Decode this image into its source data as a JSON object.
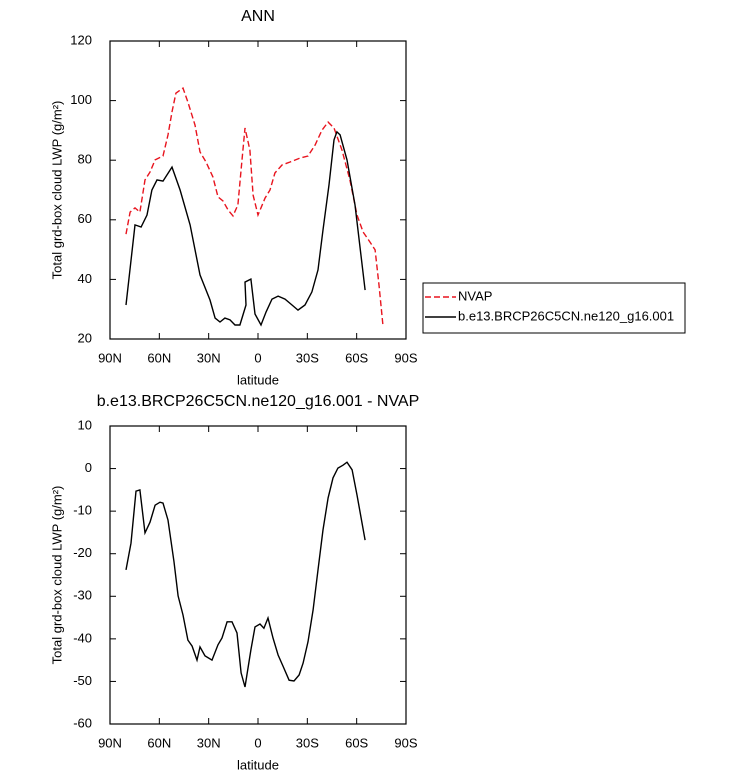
{
  "chart_data": [
    {
      "type": "line",
      "title": "ANN",
      "xlabel": "latitude",
      "ylabel": "Total grd-box cloud LWP (g/m²)",
      "xlim": [
        90,
        -90
      ],
      "xticks": [
        {
          "value": 90,
          "label": "90N"
        },
        {
          "value": 60,
          "label": "60N"
        },
        {
          "value": 30,
          "label": "30N"
        },
        0,
        {
          "value": -30,
          "label": "30S"
        },
        {
          "value": -60,
          "label": "60S"
        },
        {
          "value": -90,
          "label": "90S"
        }
      ],
      "ylim": [
        20,
        120
      ],
      "yticks": [
        20,
        40,
        60,
        80,
        100,
        120
      ],
      "legend": "right",
      "series": [
        {
          "name": "NVAP",
          "color": "#e8141e",
          "line_style": "dashed",
          "x": [
            80.3,
            77.8,
            74.8,
            71.8,
            68.7,
            65.7,
            62.6,
            57.8,
            54.7,
            52.3,
            49.9,
            45.6,
            42.6,
            38.3,
            35.3,
            31.6,
            27.4,
            24.3,
            21.3,
            18.2,
            15.2,
            12.2,
            9.7,
            7.9,
            4.9,
            3,
            0,
            -4.3,
            -7.3,
            -10.3,
            -14.6,
            -19.5,
            -25.5,
            -30.4,
            -34.7,
            -38.9,
            -42.6,
            -46.2,
            -51.1,
            -55.9,
            -60.2,
            -63.9,
            -68.1,
            -71.2,
            -73.6,
            -76
          ],
          "values": [
            55.2,
            62.6,
            64,
            62.6,
            73.4,
            76,
            80.1,
            81.4,
            88.5,
            96.2,
            102.5,
            104.2,
            99.5,
            91.8,
            82.8,
            79.4,
            74.4,
            67.7,
            66.3,
            63.3,
            61.3,
            65,
            80.1,
            90.8,
            83.4,
            68.3,
            61.6,
            67.3,
            70,
            75.7,
            78.4,
            79.4,
            80.7,
            81.4,
            85.1,
            90.1,
            92.8,
            90.8,
            83.4,
            73.4,
            61.6,
            55.9,
            52.5,
            49.9,
            38.1,
            24.4
          ]
        },
        {
          "name": "b.e13.BRCP26C5CN.ne120_g16.001",
          "color": "#000000",
          "line_style": "solid",
          "x": [
            80.3,
            74.8,
            71.1,
            67.5,
            64.5,
            61.4,
            57.8,
            52.3,
            47.4,
            41.3,
            35.3,
            29.2,
            26.1,
            23.1,
            20.1,
            17,
            14,
            11,
            7.3,
            7.9,
            4.3,
            1.8,
            -1.8,
            -4.9,
            -8.5,
            -12.2,
            -16.4,
            -20.7,
            -24.3,
            -28.6,
            -32.8,
            -36.5,
            -39.5,
            -43.2,
            -46.2,
            -48,
            -49.9,
            -54.1,
            -59,
            -65.1
          ],
          "values": [
            31.4,
            58.3,
            57.6,
            61.6,
            70,
            73.4,
            73,
            77.7,
            70,
            58.3,
            41.5,
            33.1,
            27,
            25.7,
            27,
            26.4,
            24.7,
            24.7,
            31.4,
            39.1,
            40.1,
            28.4,
            24.7,
            29.1,
            33.4,
            34.4,
            33.4,
            31.4,
            29.7,
            31.4,
            35.8,
            43.2,
            56.6,
            71.7,
            86.8,
            89.5,
            88.5,
            80.1,
            65,
            36.4
          ]
        }
      ]
    },
    {
      "type": "line",
      "title": "b.e13.BRCP26C5CN.ne120_g16.001 - NVAP",
      "xlabel": "latitude",
      "ylabel": "Total grd-box cloud LWP (g/m²)",
      "xlim": [
        90,
        -90
      ],
      "xticks": [
        {
          "value": 90,
          "label": "90N"
        },
        {
          "value": 60,
          "label": "60N"
        },
        {
          "value": 30,
          "label": "30N"
        },
        0,
        {
          "value": -30,
          "label": "30S"
        },
        {
          "value": -60,
          "label": "60S"
        },
        {
          "value": -90,
          "label": "90S"
        }
      ],
      "ylim": [
        -60,
        10
      ],
      "yticks": [
        -60,
        -50,
        -40,
        -30,
        -20,
        -10,
        0,
        10
      ],
      "series": [
        {
          "color": "#000000",
          "line_style": "solid",
          "x": [
            80.3,
            77.2,
            74.2,
            71.8,
            68.7,
            65.7,
            62.6,
            59.6,
            57.8,
            54.7,
            51.1,
            48.6,
            45.6,
            42.6,
            40.1,
            37.1,
            35.3,
            32.2,
            28,
            24.3,
            21.9,
            18.8,
            15.8,
            12.8,
            10.3,
            7.9,
            4.3,
            1.8,
            -1.2,
            -3.6,
            -6.1,
            -9.1,
            -12.2,
            -15.2,
            -18.9,
            -21.9,
            -25,
            -27.4,
            -30.4,
            -33.5,
            -36.5,
            -39.5,
            -42.6,
            -45.6,
            -48.6,
            -51.7,
            -54.1,
            -57.2,
            -60.2,
            -65.1
          ],
          "values": [
            -23.8,
            -17.5,
            -5.3,
            -5,
            -15.1,
            -12.6,
            -8.6,
            -7.9,
            -8.1,
            -12.1,
            -21.9,
            -29.9,
            -34.4,
            -40.3,
            -41.7,
            -45,
            -41.9,
            -44,
            -45,
            -41.4,
            -39.8,
            -36,
            -36,
            -38.6,
            -48,
            -51.3,
            -42.6,
            -37.2,
            -36.5,
            -37.5,
            -35.1,
            -39.8,
            -43.8,
            -46.4,
            -49.7,
            -49.9,
            -48.5,
            -45.7,
            -40.7,
            -33.2,
            -23.8,
            -14.4,
            -6.9,
            -2.2,
            0.1,
            0.8,
            1.5,
            -0.3,
            -6.2,
            -16.8
          ]
        }
      ]
    }
  ]
}
